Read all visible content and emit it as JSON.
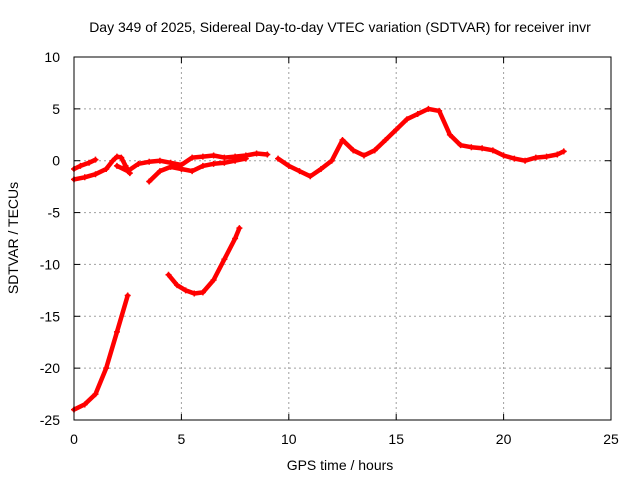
{
  "chart_data": {
    "type": "scatter",
    "title": "Day 349 of 2025, Sidereal Day-to-day VTEC variation (SDTVAR) for receiver invr",
    "xlabel": "GPS time / hours",
    "ylabel": "SDTVAR / TECUs",
    "xlim": [
      0,
      25
    ],
    "ylim": [
      -25,
      10
    ],
    "xticks": [
      "0",
      "5",
      "10",
      "15",
      "20",
      "25"
    ],
    "yticks": [
      "-25",
      "-20",
      "-15",
      "-10",
      "-5",
      "0",
      "5",
      "10"
    ],
    "grid": true,
    "colors": {
      "series": "#ff0000"
    },
    "series": [
      {
        "name": "segment-1",
        "x": [
          0,
          0.3,
          0.7,
          1.0
        ],
        "y": [
          -0.8,
          -0.5,
          -0.2,
          0.1
        ]
      },
      {
        "name": "segment-2",
        "x": [
          0,
          0.5,
          1.0,
          1.5,
          1.8,
          2.0,
          2.2,
          2.4,
          2.6
        ],
        "y": [
          -1.8,
          -1.6,
          -1.3,
          -0.8,
          0.0,
          0.4,
          0.3,
          -0.5,
          -1.2
        ]
      },
      {
        "name": "segment-3",
        "x": [
          2.0,
          2.5,
          3.0,
          3.5,
          4.0,
          4.5,
          5.0,
          5.5,
          6.0,
          6.5,
          7.0,
          7.5,
          8.0,
          8.5,
          9.0
        ],
        "y": [
          -0.5,
          -1.0,
          -0.3,
          -0.1,
          0.0,
          -0.2,
          -0.4,
          0.3,
          0.4,
          0.5,
          0.3,
          0.4,
          0.5,
          0.7,
          0.6
        ]
      },
      {
        "name": "segment-4",
        "x": [
          3.5,
          4.0,
          4.5,
          5.0,
          5.5,
          6.0,
          6.5,
          7.0,
          7.5,
          8.0
        ],
        "y": [
          -2.0,
          -1.0,
          -0.6,
          -0.8,
          -1.0,
          -0.5,
          -0.3,
          -0.2,
          0.0,
          0.2
        ]
      },
      {
        "name": "segment-5",
        "x": [
          9.5,
          10.0,
          10.5,
          11.0,
          11.5,
          12.0,
          12.5,
          13.0,
          13.5,
          14.0,
          14.5,
          15.0,
          15.5,
          16.0,
          16.5,
          17.0,
          17.5,
          18.0,
          18.5,
          19.0,
          19.5,
          20.0,
          20.5,
          21.0,
          21.5,
          22.0,
          22.5,
          22.8
        ],
        "y": [
          0.2,
          -0.5,
          -1.0,
          -1.5,
          -0.8,
          0.0,
          2.0,
          1.0,
          0.5,
          1.0,
          2.0,
          3.0,
          4.0,
          4.5,
          5.0,
          4.8,
          2.5,
          1.5,
          1.3,
          1.2,
          1.0,
          0.5,
          0.2,
          0.0,
          0.3,
          0.4,
          0.6,
          0.9
        ]
      },
      {
        "name": "segment-6",
        "x": [
          0,
          0.5,
          1.0,
          1.5,
          2.0,
          2.5
        ],
        "y": [
          -24.0,
          -23.5,
          -22.5,
          -20.0,
          -16.5,
          -13.0
        ]
      },
      {
        "name": "segment-7",
        "x": [
          4.4,
          4.8,
          5.2,
          5.6,
          6.0,
          6.5,
          7.0,
          7.5,
          7.7
        ],
        "y": [
          -11.0,
          -12.0,
          -12.5,
          -12.8,
          -12.7,
          -11.5,
          -9.5,
          -7.5,
          -6.5
        ]
      }
    ]
  }
}
